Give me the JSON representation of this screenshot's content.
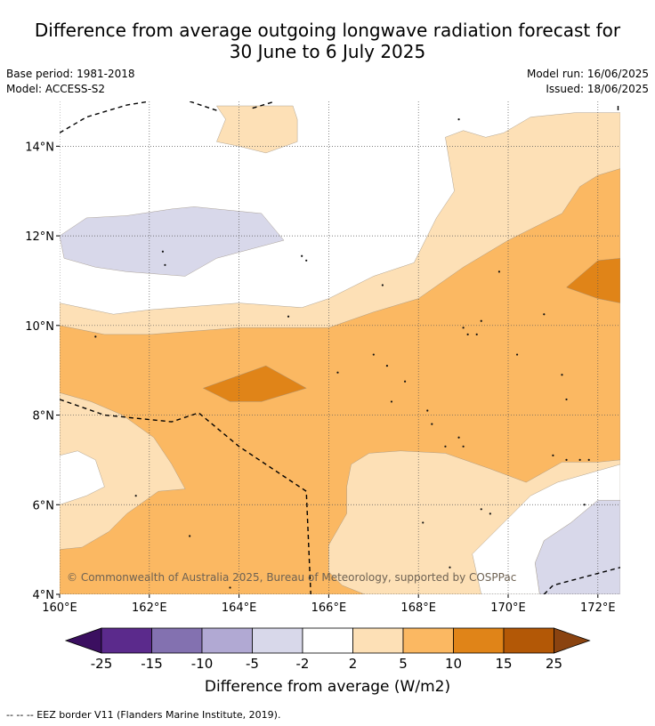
{
  "title": {
    "line1": "Difference from average outgoing longwave radiation forecast for",
    "line2": "30 June to 6 July 2025"
  },
  "meta": {
    "base_period": "Base period: 1981-2018",
    "model": "Model: ACCESS-S2",
    "model_run": "Model run: 16/06/2025",
    "issued": "Issued: 18/06/2025"
  },
  "copyright": "© Commonwealth of Australia 2025, Bureau of Meteorology, supported by COSPPac",
  "colorbar": {
    "label": "Difference from average (W/m2)",
    "ticks": [
      "-25",
      "-15",
      "-10",
      "-5",
      "-2",
      "2",
      "5",
      "10",
      "15",
      "25"
    ],
    "colors": [
      "#5b2a8c",
      "#8371b0",
      "#b1a9d3",
      "#d8d8ea",
      "#ffffff",
      "#fde0b6",
      "#fbb862",
      "#e08418",
      "#b35806"
    ],
    "low_extend_color": "#3b0f60",
    "high_extend_color": "#8a4310"
  },
  "footnote": "--  --  -- EEZ border V11 (Flanders Marine Institute, 2019).",
  "chart_data": {
    "type": "map",
    "xlim": [
      160,
      172.5
    ],
    "ylim": [
      4,
      15
    ],
    "x_ticks": [
      160,
      162,
      164,
      166,
      168,
      170,
      172
    ],
    "y_ticks": [
      4,
      6,
      8,
      10,
      12,
      14
    ],
    "x_tick_labels": [
      "160°E",
      "162°E",
      "164°E",
      "166°E",
      "168°E",
      "170°E",
      "172°E"
    ],
    "y_tick_labels": [
      "4°N",
      "6°N",
      "8°N",
      "10°N",
      "12°N",
      "14°N"
    ],
    "grid": true,
    "regions": [
      {
        "category": "2 to 5",
        "color": "#fde0b6",
        "points": [
          [
            160,
            4
          ],
          [
            172.5,
            4
          ],
          [
            172.5,
            14.75
          ],
          [
            171.5,
            14.75
          ],
          [
            170.5,
            14.65
          ],
          [
            169.9,
            14.3
          ],
          [
            169.5,
            14.2
          ],
          [
            169.0,
            14.35
          ],
          [
            168.6,
            14.2
          ],
          [
            168.8,
            13.0
          ],
          [
            168.4,
            12.4
          ],
          [
            167.9,
            11.4
          ],
          [
            167.0,
            11.1
          ],
          [
            166.0,
            10.6
          ],
          [
            165.4,
            10.4
          ],
          [
            164.0,
            10.5
          ],
          [
            162.0,
            10.35
          ],
          [
            161.2,
            10.25
          ],
          [
            160,
            10.5
          ]
        ]
      },
      {
        "category": "2 to 5",
        "color": "#fde0b6",
        "points": [
          [
            163.5,
            14.9
          ],
          [
            165.2,
            14.9
          ],
          [
            165.3,
            14.6
          ],
          [
            165.3,
            14.1
          ],
          [
            164.6,
            13.85
          ],
          [
            164.0,
            14.0
          ],
          [
            163.5,
            14.1
          ],
          [
            163.7,
            14.6
          ]
        ]
      },
      {
        "category": "5 to 10",
        "color": "#fbb862",
        "points": [
          [
            160,
            10.0
          ],
          [
            161.0,
            9.8
          ],
          [
            162.0,
            9.8
          ],
          [
            164.0,
            9.95
          ],
          [
            166.0,
            9.95
          ],
          [
            167.0,
            10.3
          ],
          [
            168.0,
            10.6
          ],
          [
            169.0,
            11.3
          ],
          [
            170.0,
            11.9
          ],
          [
            171.2,
            12.5
          ],
          [
            171.6,
            13.1
          ],
          [
            172.0,
            13.35
          ],
          [
            172.5,
            13.5
          ],
          [
            172.5,
            7.0
          ],
          [
            172.0,
            6.95
          ],
          [
            171.2,
            6.95
          ],
          [
            170.4,
            6.5
          ],
          [
            169.6,
            6.8
          ],
          [
            168.6,
            7.15
          ],
          [
            167.6,
            7.2
          ],
          [
            166.9,
            7.15
          ],
          [
            166.5,
            6.9
          ],
          [
            166.4,
            6.4
          ],
          [
            166.4,
            5.8
          ],
          [
            166.0,
            5.1
          ],
          [
            166.0,
            4.5
          ],
          [
            166.3,
            4.2
          ],
          [
            166.8,
            4.0
          ],
          [
            160,
            4.0
          ],
          [
            160,
            5.0
          ],
          [
            160.5,
            5.05
          ],
          [
            161.1,
            5.4
          ],
          [
            161.5,
            5.8
          ],
          [
            162.2,
            6.3
          ],
          [
            162.8,
            6.35
          ],
          [
            162.5,
            6.9
          ],
          [
            162.1,
            7.5
          ],
          [
            161.4,
            8.0
          ],
          [
            160.7,
            8.3
          ],
          [
            160,
            8.5
          ]
        ]
      },
      {
        "category": "10 to 15",
        "color": "#e08418",
        "points": [
          [
            163.2,
            8.6
          ],
          [
            164.6,
            9.1
          ],
          [
            165.5,
            8.6
          ],
          [
            164.5,
            8.3
          ],
          [
            163.8,
            8.3
          ]
        ]
      },
      {
        "category": "10 to 15",
        "color": "#e08418",
        "points": [
          [
            171.3,
            10.85
          ],
          [
            172.0,
            11.45
          ],
          [
            172.5,
            11.5
          ],
          [
            172.5,
            10.5
          ],
          [
            172.0,
            10.6
          ]
        ]
      },
      {
        "category": "-5 to -2",
        "color": "#d8d8ea",
        "points": [
          [
            160,
            12.0
          ],
          [
            160.6,
            12.4
          ],
          [
            161.5,
            12.45
          ],
          [
            162.5,
            12.6
          ],
          [
            163.0,
            12.65
          ],
          [
            164.5,
            12.5
          ],
          [
            165.0,
            11.9
          ],
          [
            163.5,
            11.5
          ],
          [
            162.8,
            11.1
          ],
          [
            161.5,
            11.2
          ],
          [
            160.8,
            11.3
          ],
          [
            160.1,
            11.5
          ]
        ]
      },
      {
        "category": "-5 to -2",
        "color": "#d8d8ea",
        "points": [
          [
            170.7,
            4.0
          ],
          [
            172.5,
            4.0
          ],
          [
            172.5,
            6.1
          ],
          [
            172.0,
            6.1
          ],
          [
            171.4,
            5.6
          ],
          [
            170.8,
            5.2
          ],
          [
            170.6,
            4.7
          ]
        ]
      }
    ],
    "white_patches": [
      [
        [
          160,
          6.0
        ],
        [
          160.6,
          6.2
        ],
        [
          161.0,
          6.4
        ],
        [
          160.8,
          7.0
        ],
        [
          160.4,
          7.2
        ],
        [
          160,
          7.1
        ]
      ],
      [
        [
          169.4,
          4.0
        ],
        [
          170.7,
          4.0
        ],
        [
          170.6,
          4.7
        ],
        [
          170.8,
          5.2
        ],
        [
          171.4,
          5.6
        ],
        [
          172.0,
          6.1
        ],
        [
          172.5,
          6.1
        ],
        [
          172.5,
          6.9
        ],
        [
          171.8,
          6.7
        ],
        [
          171.1,
          6.5
        ],
        [
          170.5,
          6.2
        ],
        [
          169.8,
          5.5
        ],
        [
          169.2,
          4.9
        ]
      ]
    ],
    "eez_border": [
      [
        [
          160,
          14.3
        ],
        [
          160.6,
          14.65
        ],
        [
          161.5,
          14.92
        ],
        [
          162.0,
          15.0
        ]
      ],
      [
        [
          162.9,
          15.0
        ],
        [
          163.5,
          14.8
        ]
      ],
      [
        [
          164.3,
          14.85
        ],
        [
          164.8,
          15.0
        ]
      ],
      [
        [
          172.45,
          14.9
        ],
        [
          172.45,
          14.75
        ]
      ],
      [
        [
          160,
          8.35
        ],
        [
          161.0,
          8.0
        ],
        [
          162.5,
          7.85
        ],
        [
          163.1,
          8.05
        ],
        [
          164.0,
          7.3
        ],
        [
          165.5,
          6.3
        ],
        [
          165.6,
          4.0
        ]
      ],
      [
        [
          170.8,
          4.0
        ],
        [
          171.0,
          4.2
        ],
        [
          172.5,
          4.6
        ]
      ]
    ],
    "islands": [
      [
        162.3,
        11.65
      ],
      [
        162.35,
        11.35
      ],
      [
        165.4,
        11.55
      ],
      [
        165.5,
        11.45
      ],
      [
        167.2,
        10.9
      ],
      [
        168.9,
        14.6
      ],
      [
        169.8,
        11.2
      ],
      [
        165.1,
        10.2
      ],
      [
        160.8,
        9.75
      ],
      [
        169.0,
        9.95
      ],
      [
        169.1,
        9.8
      ],
      [
        169.3,
        9.8
      ],
      [
        169.4,
        10.1
      ],
      [
        170.2,
        9.35
      ],
      [
        170.8,
        10.25
      ],
      [
        167.0,
        9.35
      ],
      [
        167.3,
        9.1
      ],
      [
        167.7,
        8.75
      ],
      [
        166.2,
        8.95
      ],
      [
        167.4,
        8.3
      ],
      [
        168.2,
        8.1
      ],
      [
        171.2,
        8.9
      ],
      [
        171.3,
        8.35
      ],
      [
        168.3,
        7.8
      ],
      [
        168.9,
        7.5
      ],
      [
        168.6,
        7.3
      ],
      [
        169.0,
        7.3
      ],
      [
        171.0,
        7.1
      ],
      [
        171.3,
        7.0
      ],
      [
        171.6,
        7.0
      ],
      [
        171.8,
        7.0
      ],
      [
        161.7,
        6.2
      ],
      [
        162.9,
        5.3
      ],
      [
        168.1,
        5.6
      ],
      [
        169.4,
        5.9
      ],
      [
        169.6,
        5.8
      ],
      [
        171.7,
        6.0
      ],
      [
        168.7,
        4.6
      ],
      [
        163.8,
        4.15
      ]
    ]
  }
}
